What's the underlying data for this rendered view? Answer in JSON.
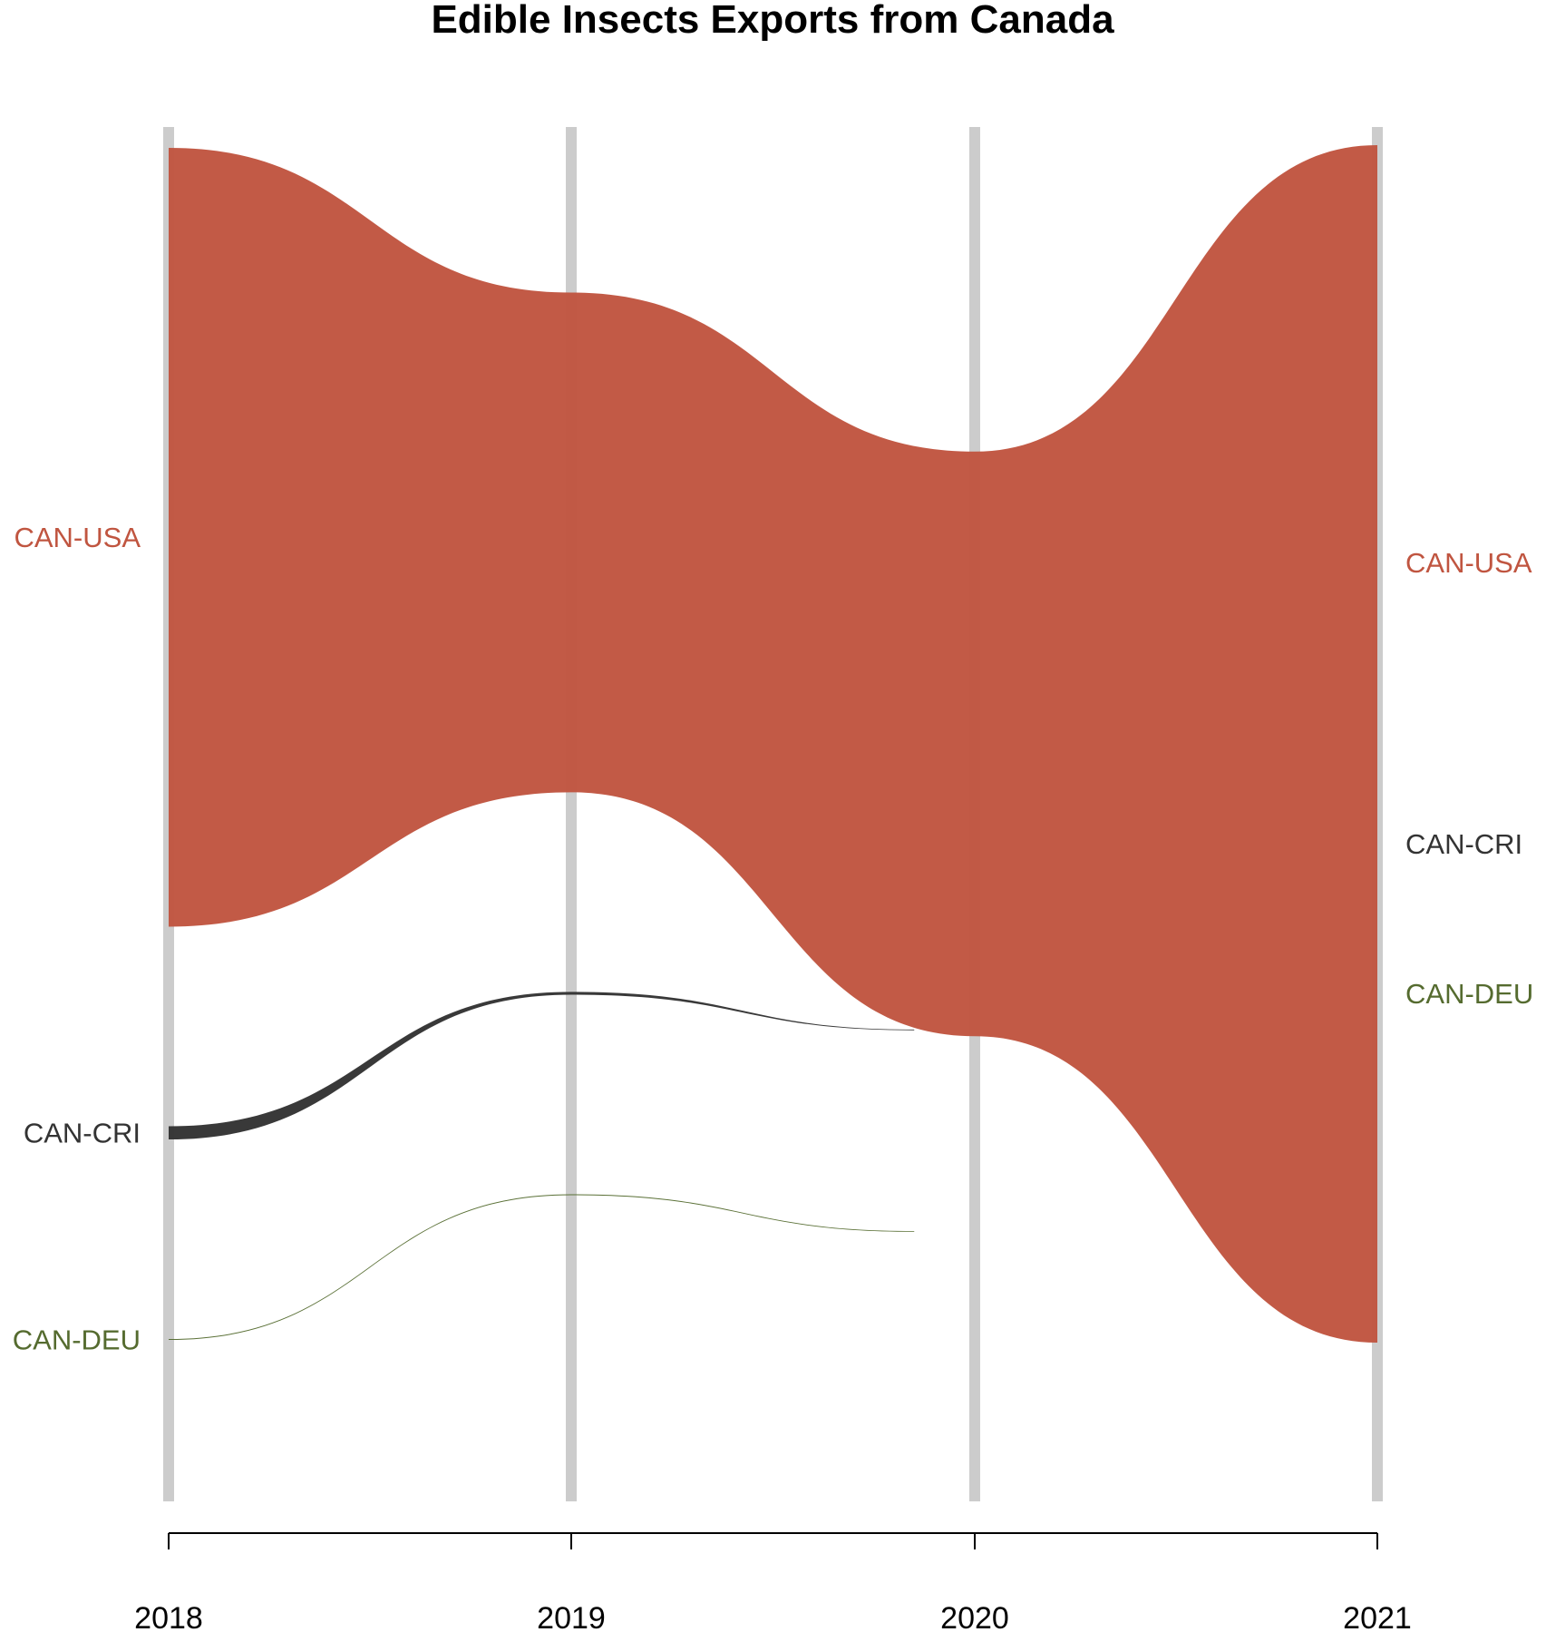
{
  "chart_data": {
    "type": "area",
    "title": "Edible Insects Exports from Canada",
    "xlabel": "",
    "ylabel": "",
    "x": [
      "2018",
      "2019",
      "2020",
      "2021"
    ],
    "grid": "vertical lines at each year",
    "series": [
      {
        "name": "CAN-USA",
        "color": "#C05540",
        "values": [
          826,
          530,
          620,
          1270
        ],
        "present": [
          true,
          true,
          true,
          true
        ]
      },
      {
        "name": "CAN-CRI",
        "color": "#333333",
        "values": [
          14,
          3,
          0,
          0
        ],
        "present": [
          true,
          true,
          false,
          false
        ]
      },
      {
        "name": "CAN-DEU",
        "color": "#556B2F",
        "values": [
          1,
          1,
          0,
          0
        ],
        "present": [
          true,
          true,
          false,
          false
        ]
      }
    ],
    "left_labels": [
      "CAN-USA",
      "CAN-CRI",
      "CAN-DEU"
    ],
    "right_labels": [
      "CAN-USA",
      "CAN-CRI",
      "CAN-DEU"
    ]
  }
}
